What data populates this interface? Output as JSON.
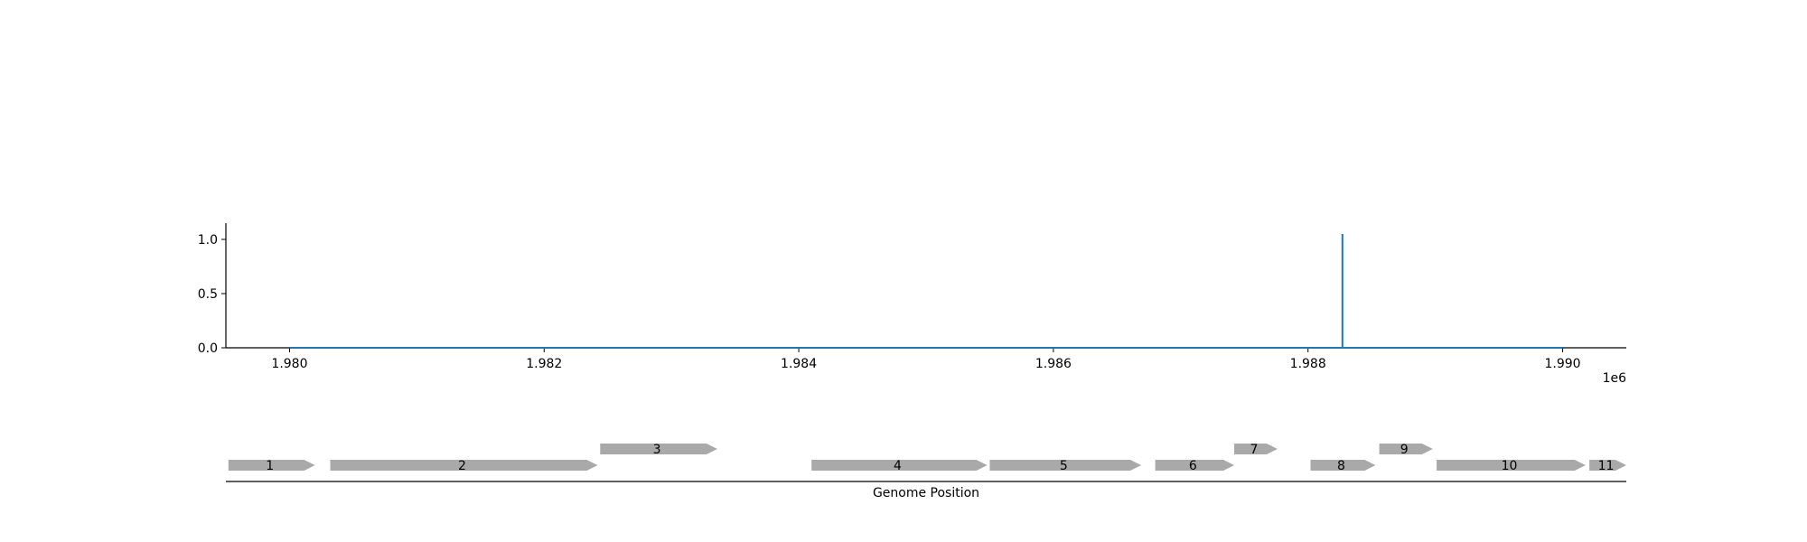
{
  "colors": {
    "signal": "#1f77b4",
    "gene": "#a9a9a9",
    "axis": "#000000"
  },
  "chart_data": [
    {
      "type": "line",
      "title": "",
      "xlabel": "",
      "ylabel": "",
      "xlim": [
        1979500,
        1990500
      ],
      "ylim": [
        0,
        1.15
      ],
      "x_offset_label": "1e6",
      "x_ticks": [
        1980000,
        1982000,
        1984000,
        1986000,
        1988000,
        1990000
      ],
      "x_tick_labels": [
        "1.980",
        "1.982",
        "1.984",
        "1.986",
        "1.988",
        "1.990"
      ],
      "y_ticks": [
        0,
        0.5,
        1
      ],
      "y_tick_labels": [
        "0.0",
        "0.5",
        "1.0"
      ],
      "grid": false,
      "series": [
        {
          "x": [
            1980000,
            1988270,
            1988270,
            1988270,
            1990000
          ],
          "y": [
            0,
            0,
            1.05,
            0,
            0
          ]
        }
      ]
    },
    {
      "type": "gene_track",
      "xlabel": "Genome Position",
      "xlim": [
        1979500,
        1990500
      ],
      "genes": [
        {
          "label": "1",
          "start": 1979520,
          "end": 1980200,
          "row": 0
        },
        {
          "label": "2",
          "start": 1980320,
          "end": 1982420,
          "row": 0
        },
        {
          "label": "3",
          "start": 1982440,
          "end": 1983360,
          "row": 1
        },
        {
          "label": "4",
          "start": 1984100,
          "end": 1985480,
          "row": 0
        },
        {
          "label": "5",
          "start": 1985500,
          "end": 1986690,
          "row": 0
        },
        {
          "label": "6",
          "start": 1986800,
          "end": 1987420,
          "row": 0
        },
        {
          "label": "7",
          "start": 1987420,
          "end": 1987760,
          "row": 1
        },
        {
          "label": "8",
          "start": 1988020,
          "end": 1988530,
          "row": 0
        },
        {
          "label": "9",
          "start": 1988560,
          "end": 1988980,
          "row": 1
        },
        {
          "label": "10",
          "start": 1989010,
          "end": 1990180,
          "row": 0
        },
        {
          "label": "11",
          "start": 1990210,
          "end": 1990500,
          "row": 0
        }
      ]
    }
  ]
}
